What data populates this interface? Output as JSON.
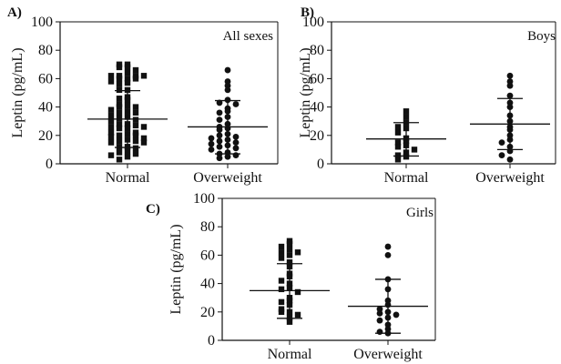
{
  "chart_data": [
    {
      "panel": "A)",
      "type": "scatter",
      "title": "All sexes",
      "ylabel": "Leptin (pg/mL)",
      "categories": [
        "Normal",
        "Overweight"
      ],
      "ylim": [
        0,
        100
      ],
      "yticks": [
        0,
        20,
        40,
        60,
        80,
        100
      ],
      "grid": false,
      "series": [
        {
          "category": "Normal",
          "marker": "square",
          "mean": 31.5,
          "sd_low": 11.5,
          "sd_high": 51.5,
          "values": [
            70,
            70,
            68,
            68,
            66,
            64,
            62,
            62,
            62,
            62,
            60,
            60,
            60,
            58,
            57,
            56,
            52,
            52,
            47,
            46,
            45,
            42,
            41,
            40,
            40,
            38,
            37,
            36,
            36,
            34,
            33,
            32,
            31,
            30,
            28,
            28,
            27,
            26,
            26,
            25,
            25,
            22,
            22,
            21,
            20,
            20,
            19,
            18,
            17,
            16,
            16,
            15,
            15,
            12,
            12,
            11,
            9,
            8,
            7,
            6,
            5,
            3
          ]
        },
        {
          "category": "Overweight",
          "marker": "circle",
          "mean": 26,
          "sd_low": 7,
          "sd_high": 44.5,
          "values": [
            66,
            58,
            55,
            52,
            45,
            43,
            42,
            39,
            37,
            36,
            33,
            31,
            28,
            26,
            25,
            24,
            21,
            20,
            19,
            18,
            17,
            16,
            15,
            14,
            13,
            12,
            11,
            10,
            8,
            7,
            6,
            5,
            4
          ]
        }
      ]
    },
    {
      "panel": "B)",
      "type": "scatter",
      "title": "Boys",
      "ylabel": "Leptin (pg/mL)",
      "categories": [
        "Normal",
        "Overweight"
      ],
      "ylim": [
        0,
        100
      ],
      "yticks": [
        0,
        20,
        40,
        60,
        80,
        100
      ],
      "grid": false,
      "series": [
        {
          "category": "Normal",
          "marker": "square",
          "mean": 17.5,
          "sd_low": 5.5,
          "sd_high": 29,
          "values": [
            37,
            33,
            29,
            26,
            25,
            22,
            18,
            16,
            15,
            13,
            12,
            10,
            8,
            6,
            5,
            3
          ]
        },
        {
          "category": "Overweight",
          "marker": "circle",
          "mean": 28,
          "sd_low": 10,
          "sd_high": 46,
          "values": [
            62,
            58,
            55,
            48,
            43,
            40,
            34,
            30,
            26,
            24,
            20,
            17,
            15,
            12,
            9,
            6,
            3
          ]
        }
      ]
    },
    {
      "panel": "C)",
      "type": "scatter",
      "title": "Girls",
      "ylabel": "Leptin (pg/mL)",
      "categories": [
        "Normal",
        "Overweight"
      ],
      "ylim": [
        0,
        100
      ],
      "yticks": [
        0,
        20,
        40,
        60,
        80,
        100
      ],
      "grid": false,
      "series": [
        {
          "category": "Normal",
          "marker": "square",
          "mean": 35,
          "sd_low": 15.5,
          "sd_high": 54,
          "values": [
            70,
            68,
            66,
            64,
            62,
            62,
            60,
            58,
            55,
            52,
            47,
            45,
            42,
            40,
            37,
            36,
            34,
            30,
            28,
            27,
            25,
            22,
            20,
            20,
            18,
            16,
            13
          ]
        },
        {
          "category": "Overweight",
          "marker": "circle",
          "mean": 24,
          "sd_low": 5,
          "sd_high": 43,
          "values": [
            66,
            60,
            43,
            36,
            28,
            25,
            22,
            20,
            19,
            18,
            16,
            14,
            11,
            8,
            6,
            5
          ]
        }
      ]
    }
  ]
}
